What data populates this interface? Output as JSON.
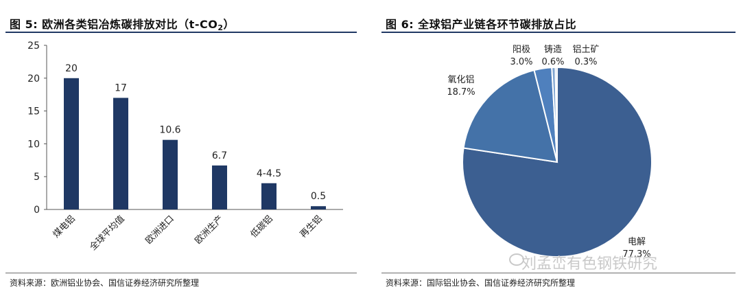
{
  "left": {
    "title_parts": {
      "prefix": "图 5:  欧洲各类铝冶炼碳排放对比（t-CO",
      "sub": "2",
      "suffix": "）"
    },
    "source": "资料来源：欧洲铝业协会、国信证券经济研究所整理"
  },
  "right": {
    "title": "图 6:  全球铝产业链各环节碳排放占比",
    "source": "资料来源：国际铝业协会、国信证券经济研究所整理"
  },
  "watermark": "刘孟峦有色钢铁研究",
  "colors": {
    "bar": "#1f3864",
    "pie": "#3c5f91",
    "title_rule": "#1f3864"
  },
  "chart_data": [
    {
      "type": "bar",
      "title": "欧洲各类铝冶炼碳排放对比（t-CO2）",
      "categories": [
        "煤电铝",
        "全球平均值",
        "欧洲进口",
        "欧洲生产",
        "低碳铝",
        "再生铝"
      ],
      "values": [
        20,
        17,
        10.6,
        6.7,
        4,
        0.5
      ],
      "value_labels": [
        "20",
        "17",
        "10.6",
        "6.7",
        "4-4.5",
        "0.5"
      ],
      "ylim": [
        0,
        25
      ],
      "yticks": [
        0,
        5,
        10,
        15,
        20,
        25
      ],
      "grid": false
    },
    {
      "type": "pie",
      "title": "全球铝产业链各环节碳排放占比",
      "labels": [
        "电解",
        "氧化铝",
        "阳极",
        "铸造",
        "铝土矿"
      ],
      "values": [
        77.3,
        18.7,
        3.0,
        0.6,
        0.3
      ],
      "value_labels": [
        "77.3%",
        "18.7%",
        "3.0%",
        "0.6%",
        "0.3%"
      ],
      "colors": [
        "#3c5f91",
        "#4472a8",
        "#4f80bd",
        "#7ea3cf",
        "#a9c1de"
      ]
    }
  ]
}
